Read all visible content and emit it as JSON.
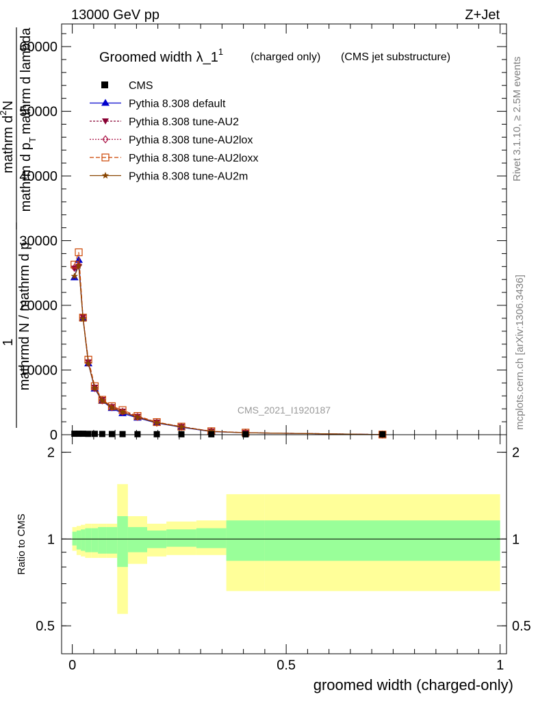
{
  "header": {
    "left": "13000 GeV pp",
    "right": "Z+Jet"
  },
  "side": {
    "top": "Rivet 3.1.10, ≥ 2.5M events",
    "bottom": "mcplots.cern.ch [arXiv:1306.3436]"
  },
  "watermark": "CMS_2021_I1920187",
  "title": {
    "main": "Groomed width",
    "lambda": "λ_1",
    "sup": "1",
    "paren1": "(charged only)",
    "paren2": "(CMS jet substructure)"
  },
  "ylabel": {
    "one": "1",
    "den": "mathrmd N / mathrm d p",
    "num1": "mathrm d",
    "num1sup": "2",
    "num1n": "N",
    "num2": "mathrm d p",
    "num2sub": "T",
    "num2rest": "mathrm d lambda"
  },
  "ratio_ylabel": "Ratio to CMS",
  "xlabel": "groomed width (charged-only)",
  "legend": [
    {
      "label": "CMS",
      "color": "#000000",
      "marker": "square-filled",
      "dash": ""
    },
    {
      "label": "Pythia 8.308 default",
      "color": "#0000cc",
      "marker": "triangle-up",
      "dash": ""
    },
    {
      "label": "Pythia 8.308 tune-AU2",
      "color": "#880033",
      "marker": "triangle-down",
      "dash": "3,2"
    },
    {
      "label": "Pythia 8.308 tune-AU2lox",
      "color": "#aa1144",
      "marker": "diamond-open",
      "dash": "2,2"
    },
    {
      "label": "Pythia 8.308 tune-AU2loxx",
      "color": "#cc4400",
      "marker": "square-open",
      "dash": "6,3"
    },
    {
      "label": "Pythia 8.308 tune-AU2m",
      "color": "#884400",
      "marker": "star",
      "dash": ""
    }
  ],
  "main_ticks": {
    "y": [
      {
        "v": 0,
        "label": "0"
      },
      {
        "v": 10000,
        "label": "10000"
      },
      {
        "v": 20000,
        "label": "20000"
      },
      {
        "v": 30000,
        "label": "30000"
      },
      {
        "v": 40000,
        "label": "40000"
      },
      {
        "v": 50000,
        "label": "50000"
      },
      {
        "v": 60000,
        "label": "60000"
      }
    ]
  },
  "ratio_ticks": {
    "y": [
      {
        "v": 0.5,
        "label": "0.5"
      },
      {
        "v": 1,
        "label": "1"
      },
      {
        "v": 2,
        "label": "2"
      }
    ],
    "x": [
      {
        "v": 0,
        "label": "0"
      },
      {
        "v": 0.5,
        "label": "0.5"
      },
      {
        "v": 1,
        "label": "1"
      }
    ]
  },
  "chart_data": {
    "type": "line",
    "xlim": [
      -0.025,
      1.015
    ],
    "ylim": [
      0,
      63500
    ],
    "ratio_ylim": [
      0.4,
      2.3
    ],
    "bin_edges": [
      0,
      0.01,
      0.02,
      0.03,
      0.045,
      0.06,
      0.08,
      0.105,
      0.13,
      0.175,
      0.22,
      0.29,
      0.36,
      0.45,
      1.0
    ],
    "x": [
      0.005,
      0.015,
      0.025,
      0.0375,
      0.0525,
      0.07,
      0.0925,
      0.1175,
      0.1525,
      0.1975,
      0.255,
      0.325,
      0.405,
      0.725
    ],
    "cms_values": [
      100,
      100,
      100,
      80,
      80,
      60,
      50,
      40,
      30,
      25,
      20,
      15,
      8,
      3
    ],
    "series": [
      {
        "name": "Pythia 8.308 default",
        "values": [
          24300,
          27000,
          18000,
          11000,
          7100,
          5200,
          4100,
          3300,
          2600,
          1800,
          1150,
          480,
          300,
          20
        ]
      },
      {
        "name": "Pythia 8.308 tune-AU2",
        "values": [
          25700,
          26000,
          18200,
          11200,
          7300,
          5400,
          4300,
          3600,
          2800,
          1900,
          1250,
          520,
          310,
          22
        ]
      },
      {
        "name": "Pythia 8.308 tune-AU2lox",
        "values": [
          25800,
          26200,
          18100,
          11100,
          7200,
          5300,
          4250,
          3550,
          2750,
          1850,
          1200,
          510,
          305,
          21
        ]
      },
      {
        "name": "Pythia 8.308 tune-AU2loxx",
        "values": [
          26300,
          28200,
          18100,
          11600,
          7500,
          5400,
          4400,
          3800,
          2900,
          1950,
          1250,
          540,
          320,
          22
        ]
      },
      {
        "name": "Pythia 8.308 tune-AU2m",
        "values": [
          24500,
          26100,
          17900,
          11000,
          7200,
          5300,
          4200,
          3500,
          2700,
          1850,
          1200,
          500,
          300,
          20
        ]
      }
    ],
    "ratio_band_inner": [
      [
        0.95,
        1.06
      ],
      [
        0.92,
        1.07
      ],
      [
        0.91,
        1.08
      ],
      [
        0.9,
        1.09
      ],
      [
        0.9,
        1.09
      ],
      [
        0.89,
        1.1
      ],
      [
        0.89,
        1.1
      ],
      [
        0.8,
        1.2
      ],
      [
        0.9,
        1.1
      ],
      [
        0.93,
        1.07
      ],
      [
        0.94,
        1.08
      ],
      [
        0.93,
        1.09
      ],
      [
        0.84,
        1.16
      ],
      [
        0.84,
        1.16
      ]
    ],
    "ratio_band_outer": [
      [
        0.91,
        1.1
      ],
      [
        0.88,
        1.11
      ],
      [
        0.87,
        1.12
      ],
      [
        0.86,
        1.13
      ],
      [
        0.86,
        1.13
      ],
      [
        0.86,
        1.13
      ],
      [
        0.86,
        1.13
      ],
      [
        0.55,
        1.55
      ],
      [
        0.82,
        1.2
      ],
      [
        0.87,
        1.13
      ],
      [
        0.88,
        1.15
      ],
      [
        0.88,
        1.16
      ],
      [
        0.66,
        1.43
      ],
      [
        0.66,
        1.43
      ]
    ]
  }
}
